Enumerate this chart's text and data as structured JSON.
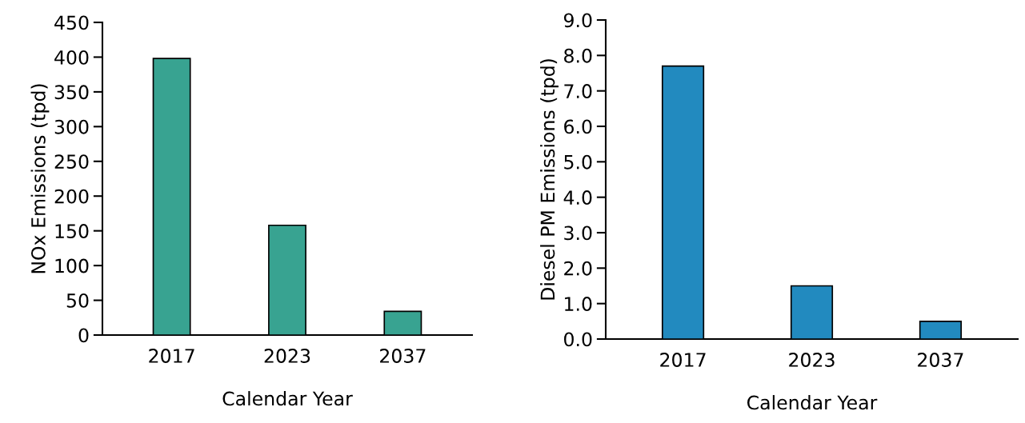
{
  "chart_data": [
    {
      "type": "bar",
      "categories": [
        "2017",
        "2023",
        "2037"
      ],
      "values": [
        398,
        158,
        34
      ],
      "color": "#38a391",
      "xlabel": "Calendar Year",
      "ylabel": "NOx Emissions (tpd)",
      "ylim": [
        0,
        450
      ],
      "yticks": [
        0,
        50,
        100,
        150,
        200,
        250,
        300,
        350,
        400,
        450
      ],
      "grid": false,
      "legend": false
    },
    {
      "type": "bar",
      "categories": [
        "2017",
        "2023",
        "2037"
      ],
      "values": [
        7.7,
        1.5,
        0.5
      ],
      "color": "#228abf",
      "xlabel": "Calendar Year",
      "ylabel": "Diesel PM Emissions (tpd)",
      "ylim": [
        0,
        9
      ],
      "yticks": [
        {
          "value": 0,
          "label": "0.0"
        },
        {
          "value": 1,
          "label": "1.0"
        },
        {
          "value": 2,
          "label": "2.0"
        },
        {
          "value": 3,
          "label": "3.0"
        },
        {
          "value": 4,
          "label": "4.0"
        },
        {
          "value": 5,
          "label": "5.0"
        },
        {
          "value": 6,
          "label": "6.0"
        },
        {
          "value": 7,
          "label": "7.0"
        },
        {
          "value": 8,
          "label": "8.0"
        },
        {
          "value": 9,
          "label": "9.0"
        }
      ],
      "grid": false,
      "legend": false
    }
  ]
}
